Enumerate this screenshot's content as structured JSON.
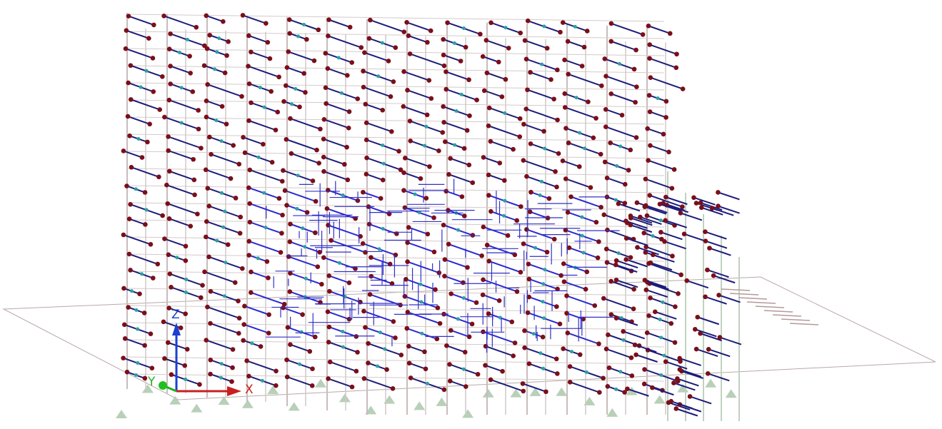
{
  "axes": {
    "z_label": "Z",
    "y_label": "Y",
    "x_label": "X"
  }
}
